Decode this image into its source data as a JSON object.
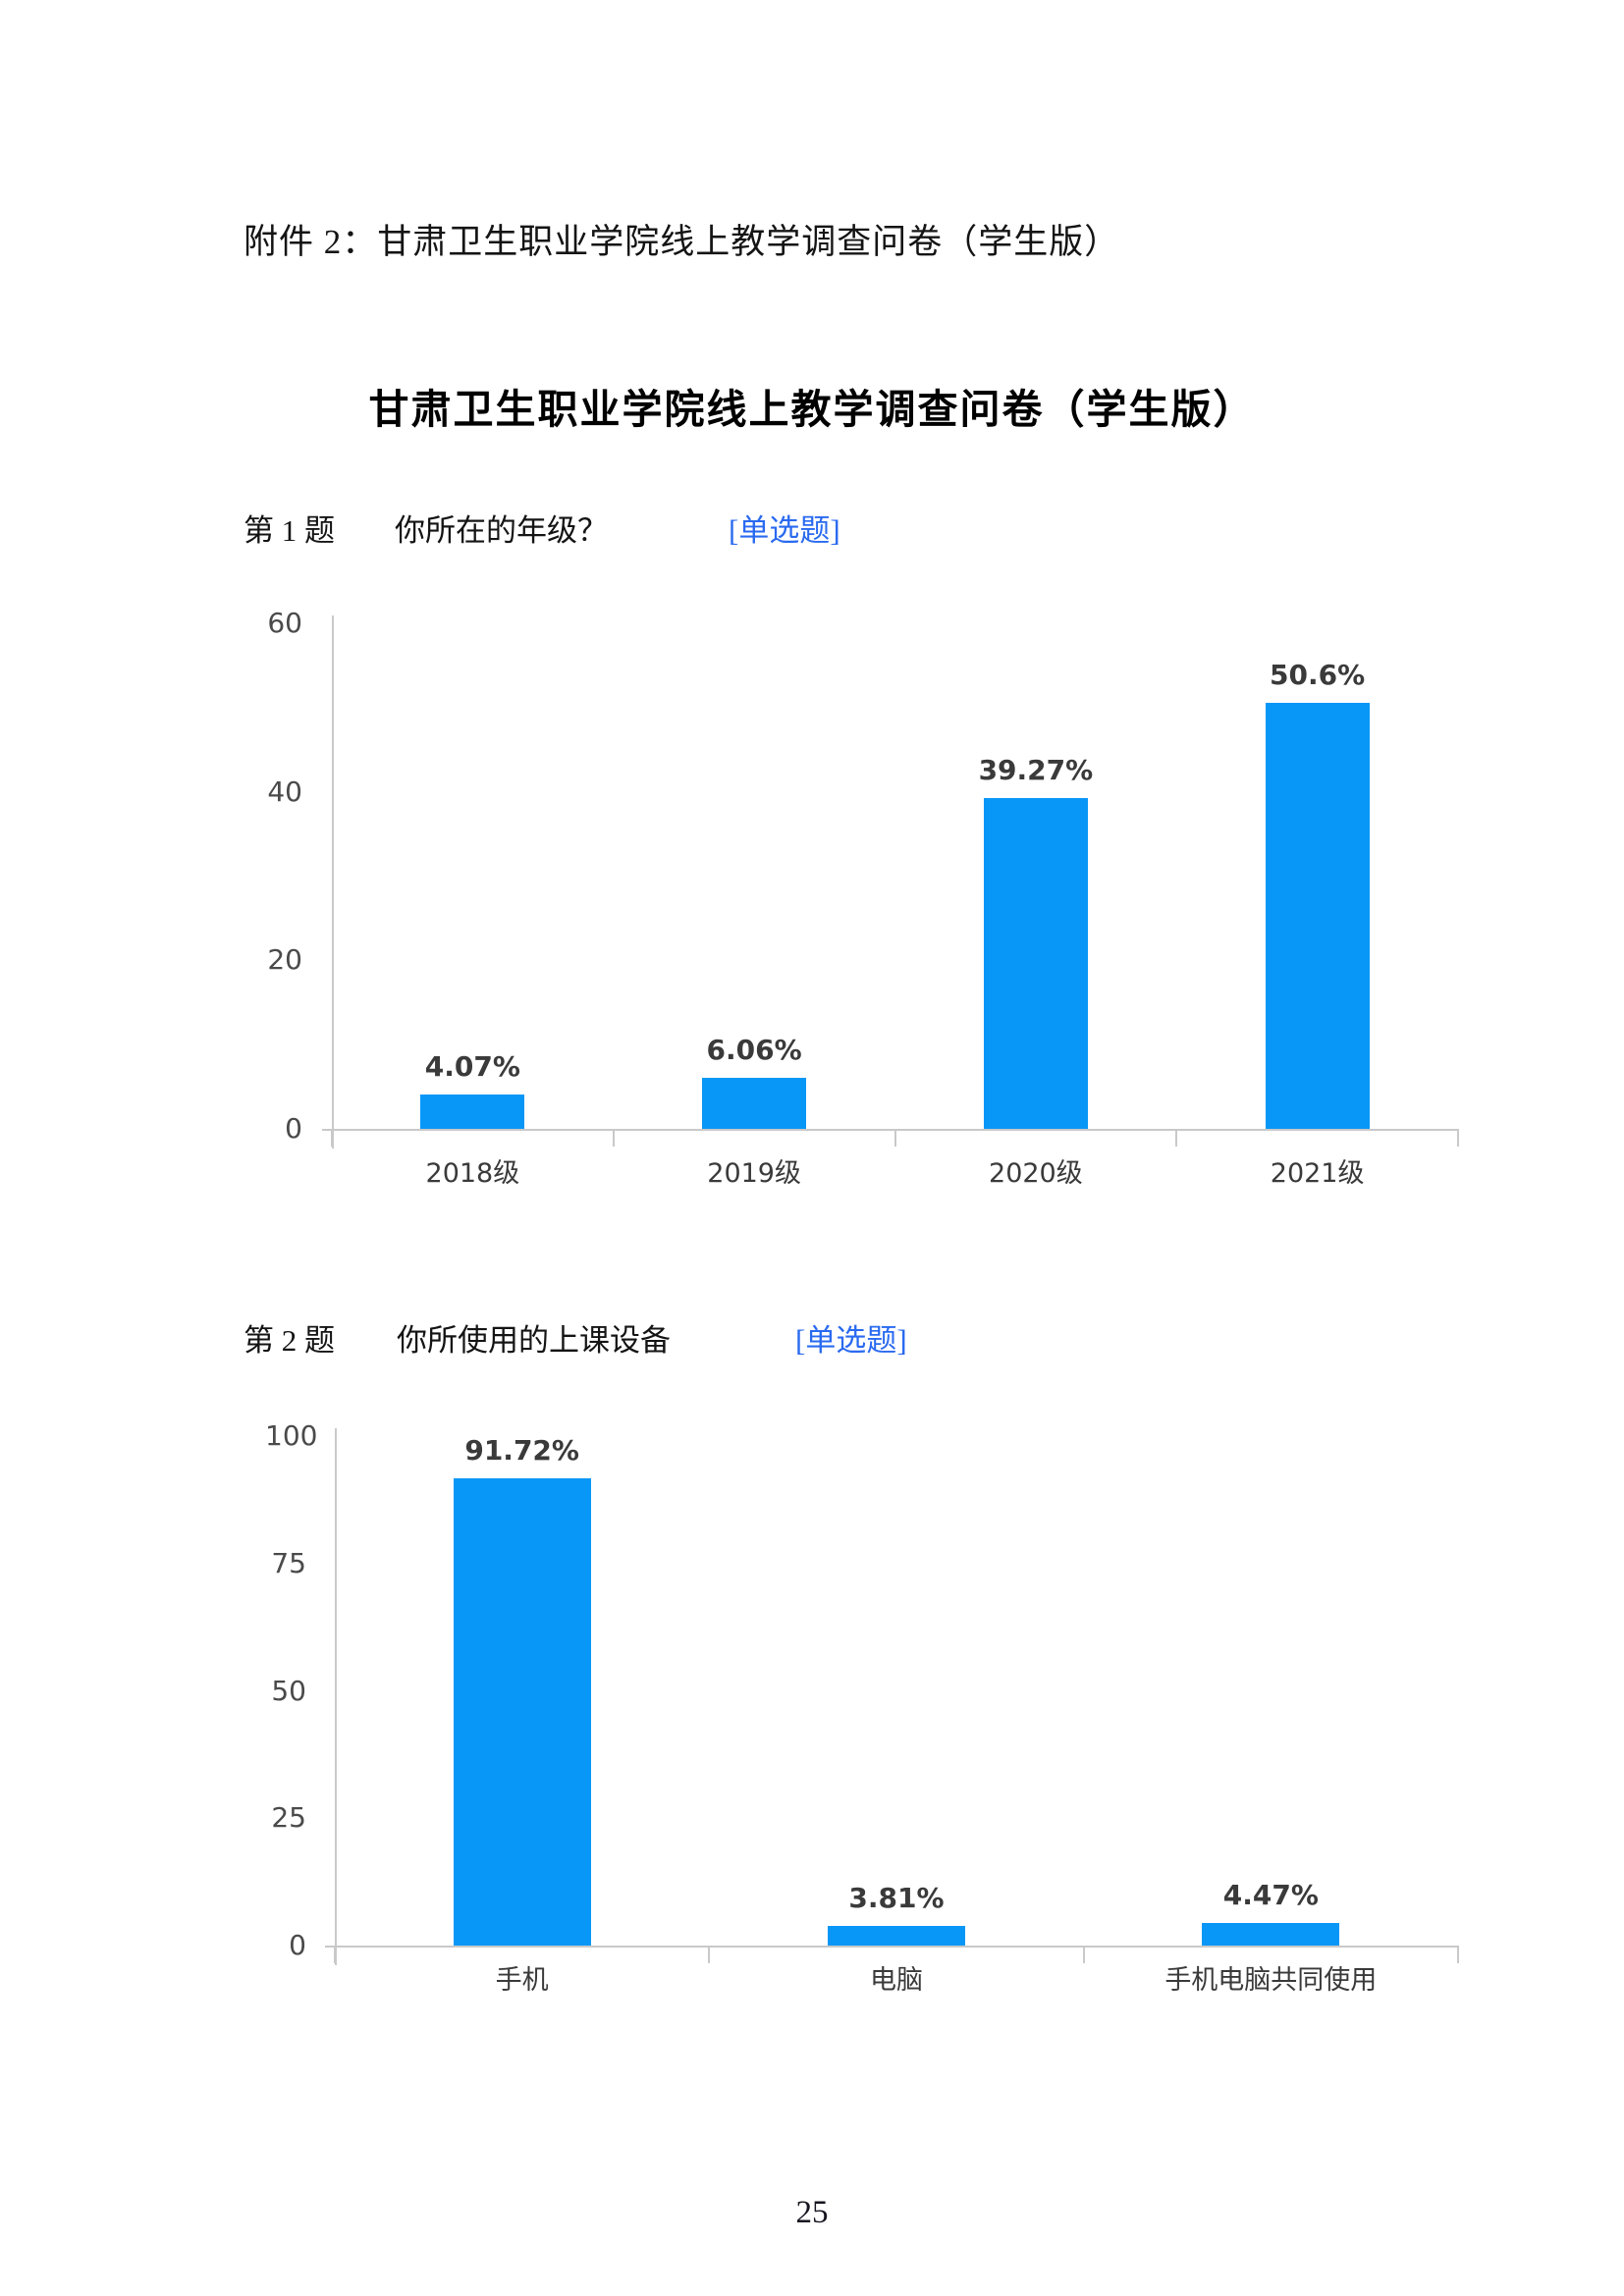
{
  "page": {
    "attachment_line": "附件 2：甘肃卫生职业学院线上教学调查问卷（学生版）",
    "title": "甘肃卫生职业学院线上教学调查问卷（学生版）",
    "page_number": "25"
  },
  "questions": [
    {
      "number": "第 1 题",
      "text": "你所在的年级？",
      "tag": "[单选题]"
    },
    {
      "number": "第 2 题",
      "text": "你所使用的上课设备",
      "tag": "[单选题]"
    }
  ],
  "colors": {
    "bar_blue": "#0997f7",
    "tag_blue": "#2a6af0",
    "axis_gray": "#c9c9c9",
    "chart_text": "#3a3a3a",
    "body_text": "#141414"
  },
  "chart_data": [
    {
      "type": "bar",
      "title": "",
      "question": "第 1 题 你所在的年级？",
      "categories": [
        "2018级",
        "2019级",
        "2020级",
        "2021级"
      ],
      "values": [
        4.07,
        6.06,
        39.27,
        50.6
      ],
      "value_labels": [
        "4.07%",
        "6.06%",
        "39.27%",
        "50.6%"
      ],
      "xlabel": "",
      "ylabel": "",
      "ylim": [
        0,
        60
      ],
      "yticks": [
        0,
        20,
        40,
        60
      ],
      "grid": false,
      "legend": "none",
      "bar_color": "#0997f7"
    },
    {
      "type": "bar",
      "title": "",
      "question": "第 2 题 你所使用的上课设备",
      "categories": [
        "手机",
        "电脑",
        "手机电脑共同使用"
      ],
      "values": [
        91.72,
        3.81,
        4.47
      ],
      "value_labels": [
        "91.72%",
        "3.81%",
        "4.47%"
      ],
      "xlabel": "",
      "ylabel": "",
      "ylim": [
        0,
        100
      ],
      "yticks": [
        0,
        25,
        50,
        75,
        100
      ],
      "grid": false,
      "legend": "none",
      "bar_color": "#0997f7"
    }
  ]
}
